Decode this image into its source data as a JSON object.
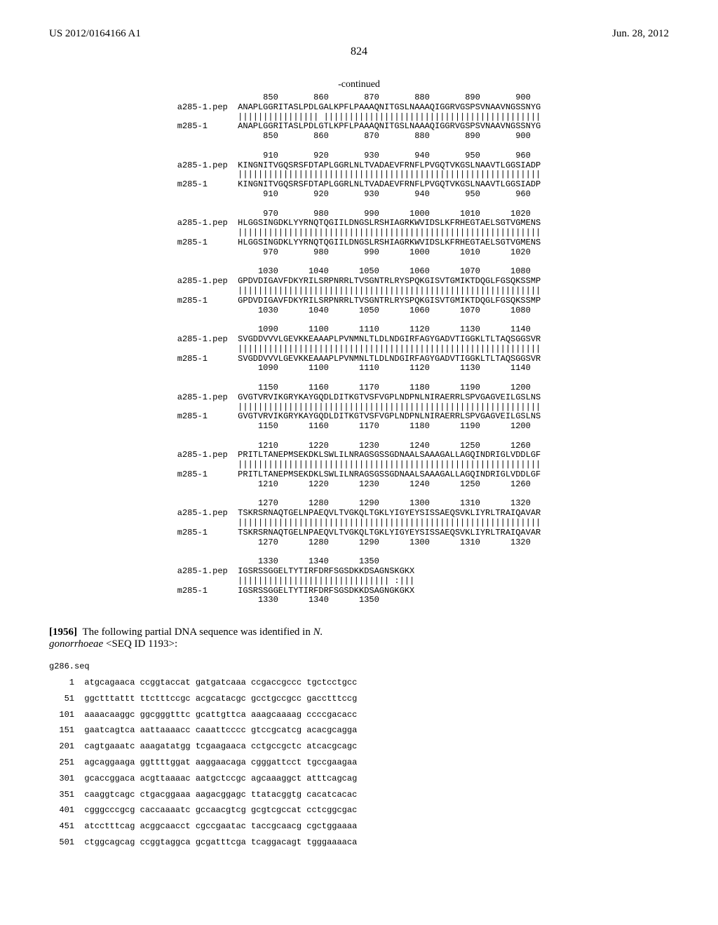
{
  "header": {
    "left": "US 2012/0164166 A1",
    "right": "Jun. 28, 2012"
  },
  "page_number": "824",
  "continued_label": "-continued",
  "alignment": {
    "label_a": "a285-1.pep",
    "label_m": "m285-1",
    "blocks": [
      {
        "pos_top": "                 850       860       870       880       890       900",
        "seq_a": "ANAPLGGRITASLPDLGALKPFLPAAAQNITGSLNAAAQIGGRVGSPSVNAAVNGSSNYG",
        "match": "|||||||||||||||| |||||||||||||||||||||||||||||||||||||||||||",
        "seq_m": "ANAPLGGRITASLPDLGTLKPFLPAAAQNITGSLNAAAQIGGRVGSPSVNAAVNGSSNYG",
        "pos_bot": "                 850       860       870       880       890       900"
      },
      {
        "pos_top": "                 910       920       930       940       950       960",
        "seq_a": "KINGNITVGQSRSFDTAPLGGRLNLTVADAEVFRNFLPVGQTVKGSLNAAVTLGGSIADP",
        "match": "||||||||||||||||||||||||||||||||||||||||||||||||||||||||||||",
        "seq_m": "KINGNITVGQSRSFDTAPLGGRLNLTVADAEVFRNFLPVGQTVKGSLNAAVTLGGSIADP",
        "pos_bot": "                 910       920       930       940       950       960"
      },
      {
        "pos_top": "                 970       980       990      1000      1010      1020",
        "seq_a": "HLGGSINGDKLYYRNQTQGIILDNGSLRSHIAGRKWVIDSLKFRHEGTAELSGTVGMENS",
        "match": "||||||||||||||||||||||||||||||||||||||||||||||||||||||||||||",
        "seq_m": "HLGGSINGDKLYYRNQTQGIILDNGSLRSHIAGRKWVIDSLKFRHEGTAELSGTVGMENS",
        "pos_bot": "                 970       980       990      1000      1010      1020"
      },
      {
        "pos_top": "                1030      1040      1050      1060      1070      1080",
        "seq_a": "GPDVDIGAVFDKYRILSRPNRRLTVSGNTRLRYSPQKGISVTGMIKTDQGLFGSQKSSMP",
        "match": "||||||||||||||||||||||||||||||||||||||||||||||||||||||||||||",
        "seq_m": "GPDVDIGAVFDKYRILSRPNRRLTVSGNTRLRYSPQKGISVTGMIKTDQGLFGSQKSSMP",
        "pos_bot": "                1030      1040      1050      1060      1070      1080"
      },
      {
        "pos_top": "                1090      1100      1110      1120      1130      1140",
        "seq_a": "SVGDDVVVLGEVKKEAAAPLPVNMNLTLDLNDGIRFAGYGADVTIGGKLTLTAQSGGSVR",
        "match": "||||||||||||||||||||||||||||||||||||||||||||||||||||||||||||",
        "seq_m": "SVGDDVVVLGEVKKEAAAPLPVNMNLTLDLNDGIRFAGYGADVTIGGKLTLTAQSGGSVR",
        "pos_bot": "                1090      1100      1110      1120      1130      1140"
      },
      {
        "pos_top": "                1150      1160      1170      1180      1190      1200",
        "seq_a": "GVGTVRVIKGRYKAYGQDLDITKGTVSFVGPLNDPNLNIRAERRLSPVGAGVEILGSLNS",
        "match": "||||||||||||||||||||||||||||||||||||||||||||||||||||||||||||",
        "seq_m": "GVGTVRVIKGRYKAYGQDLDITKGTVSFVGPLNDPNLNIRAERRLSPVGAGVEILGSLNS",
        "pos_bot": "                1150      1160      1170      1180      1190      1200"
      },
      {
        "pos_top": "                1210      1220      1230      1240      1250      1260",
        "seq_a": "PRITLTANEPMSEKDKLSWLILNRAGSGSSGDNAALSAAAGALLAGQINDRIGLVDDLGF",
        "match": "||||||||||||||||||||||||||||||||||||||||||||||||||||||||||||",
        "seq_m": "PRITLTANEPMSEKDKLSWLILNRAGSGSSGDNAALSAAAGALLAGQINDRIGLVDDLGF",
        "pos_bot": "                1210      1220      1230      1240      1250      1260"
      },
      {
        "pos_top": "                1270      1280      1290      1300      1310      1320",
        "seq_a": "TSKRSRNAQTGELNPAEQVLTVGKQLTGKLYIGYEYSISSAEQSVKLIYRLTRAIQAVAR",
        "match": "||||||||||||||||||||||||||||||||||||||||||||||||||||||||||||",
        "seq_m": "TSKRSRNAQTGELNPAEQVLTVGKQLTGKLYIGYEYSISSAEQSVKLIYRLTRAIQAVAR",
        "pos_bot": "                1270      1280      1290      1300      1310      1320"
      },
      {
        "pos_top": "                1330      1340      1350",
        "seq_a": "IGSRSSGGELTYTIRFDRFSGSDKKDSAGNSKGKX",
        "match": "|||||||||||||||||||||||||||||| :|||",
        "seq_m": "IGSRSSGGELTYTIRFDRFSGSDKKDSAGNGKGKX",
        "pos_bot": "                1330      1340      1350"
      }
    ]
  },
  "para": {
    "number": "[1956]",
    "text_before": "The following partial DNA sequence was identified in ",
    "organism": "N. gonorrhoeae",
    "text_after": " <SEQ ID 1193>:"
  },
  "dna": {
    "header": "g286.seq",
    "lines": [
      {
        "n": "1",
        "s": "atgcagaaca ccggtaccat gatgatcaaa ccgaccgccc tgctcctgcc"
      },
      {
        "n": "51",
        "s": "ggctttattt ttctttccgc acgcatacgc gcctgccgcc gacctttccg"
      },
      {
        "n": "101",
        "s": "aaaacaaggc ggcgggtttc gcattgttca aaagcaaaag ccccgacacc"
      },
      {
        "n": "151",
        "s": "gaatcagtca aattaaaacc caaattcccc gtccgcatcg acacgcagga"
      },
      {
        "n": "201",
        "s": "cagtgaaatc aaagatatgg tcgaagaaca cctgccgctc atcacgcagc"
      },
      {
        "n": "251",
        "s": "agcaggaaga ggttttggat aaggaacaga cgggattcct tgccgaagaa"
      },
      {
        "n": "301",
        "s": "gcaccggaca acgttaaaac aatgctccgc agcaaaggct atttcagcag"
      },
      {
        "n": "351",
        "s": "caaggtcagc ctgacggaaa aagacggagc ttatacggtg cacatcacac"
      },
      {
        "n": "401",
        "s": "cgggcccgcg caccaaaatc gccaacgtcg gcgtcgccat cctcggcgac"
      },
      {
        "n": "451",
        "s": "atcctttcag acggcaacct cgccgaatac taccgcaacg cgctggaaaa"
      },
      {
        "n": "501",
        "s": "ctggcagcag ccggtaggca gcgatttcga tcaggacagt tgggaaaaca"
      }
    ]
  }
}
